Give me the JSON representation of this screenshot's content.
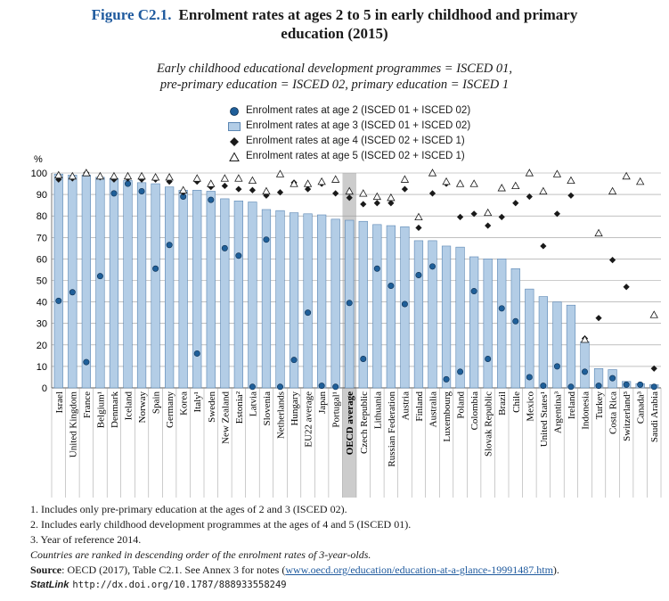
{
  "figure": {
    "number": "Figure C2.1.",
    "title_line1": "Enrolment rates at ages 2 to 5 in early childhood and primary",
    "title_line2": "education (2015)",
    "subtitle_line1": "Early childhood educational development programmes = ISCED 01,",
    "subtitle_line2": "pre-primary education = ISCED 02, primary education = ISCED 1"
  },
  "legend": [
    {
      "symbol": "circle",
      "label": "Enrolment rates at age 2  (ISCED 01 + ISCED 02)"
    },
    {
      "symbol": "bar",
      "label": "Enrolment rates at age 3  (ISCED 01 + ISCED 02)"
    },
    {
      "symbol": "diamond",
      "label": "Enrolment rates at age 4  (ISCED 02 + ISCED 1)"
    },
    {
      "symbol": "triangle",
      "label": "Enrolment rates at age 5  (ISCED 02 + ISCED 1)"
    }
  ],
  "colors": {
    "bar_fill": "#b3cde6",
    "bar_stroke": "#5b86b3",
    "circle_fill": "#1f5f99",
    "diamond_fill": "#1a1a1a",
    "triangle_stroke": "#1a1a1a",
    "highlight": "#cccccc",
    "title_blue": "#1f5a9e"
  },
  "chart_data": {
    "type": "bar",
    "ylabel": "%",
    "ylim": [
      0,
      100
    ],
    "yticks": [
      0,
      10,
      20,
      30,
      40,
      50,
      60,
      70,
      80,
      90,
      100
    ],
    "grid": true,
    "highlighted_category": "OECD average",
    "categories": [
      "Israel",
      "United Kingdom",
      "France",
      "Belgium¹",
      "Denmark",
      "Iceland",
      "Norway",
      "Spain",
      "Germany",
      "Korea",
      "Italy¹",
      "Sweden",
      "New Zealand",
      "Estonia²",
      "Latvia",
      "Slovenia",
      "Netherlands",
      "Hungary",
      "EU22 average",
      "Japan",
      "Portugal¹",
      "OECD average",
      "Czech Republic",
      "Lithuania",
      "Russian Federation",
      "Austria",
      "Finland",
      "Australia",
      "Luxembourg",
      "Poland",
      "Colombia",
      "Slovak Republic",
      "Brazil",
      "Chile",
      "Mexico",
      "United States¹",
      "Argentina³",
      "Ireland",
      "Indonesia",
      "Turkey",
      "Costa Rica",
      "Switzerland³",
      "Canada³",
      "Saudi Arabia"
    ],
    "series": [
      {
        "name": "Enrolment rates at age 2  (ISCED 01 + ISCED 02)",
        "marker": "circle",
        "values": [
          40.5,
          44.5,
          12,
          52,
          90.5,
          95,
          91.5,
          55.5,
          66.5,
          89,
          16,
          87.5,
          65,
          61.5,
          0.5,
          69,
          0.5,
          13,
          35,
          1,
          0.5,
          39.5,
          13.5,
          55.5,
          47.5,
          39,
          52.5,
          56.5,
          4,
          7.5,
          45,
          13.5,
          37,
          31,
          5,
          1,
          10,
          0.5,
          7.5,
          1,
          4.5,
          1.5,
          1.5,
          0.5
        ]
      },
      {
        "name": "Enrolment rates at age 3  (ISCED 01 + ISCED 02)",
        "marker": "bar",
        "values": [
          99.5,
          99,
          99,
          98,
          97.5,
          96.5,
          95.5,
          95,
          93.5,
          92,
          92,
          91.5,
          88,
          87,
          86.5,
          83,
          82.5,
          81.5,
          81,
          80.5,
          78.5,
          78,
          77.5,
          76,
          75.5,
          75,
          68.5,
          68.5,
          66,
          65.5,
          61,
          60,
          60,
          55.5,
          46,
          42.5,
          40,
          38.5,
          21.5,
          9,
          8.5,
          3,
          2,
          1.5
        ]
      },
      {
        "name": "Enrolment rates at age 4  (ISCED 02 + ISCED 1)",
        "marker": "diamond",
        "values": [
          97,
          97.5,
          100,
          98,
          97,
          97.5,
          97,
          97,
          96,
          91,
          96,
          93.5,
          94,
          92.5,
          92,
          89.5,
          91,
          95.5,
          92.5,
          95,
          90.5,
          88.5,
          85.5,
          86,
          86,
          92.5,
          74.5,
          90.5,
          95,
          79.5,
          81,
          75.5,
          79.5,
          86,
          89,
          66,
          81,
          89.5,
          23,
          32.5,
          59.5,
          47,
          null,
          9
        ]
      },
      {
        "name": "Enrolment rates at age 5  (ISCED 02 + ISCED 1)",
        "marker": "triangle",
        "values": [
          99,
          98.5,
          100,
          98.5,
          98.5,
          98.5,
          98.5,
          98,
          98,
          92,
          97.5,
          95,
          97.5,
          97.5,
          96.5,
          91.5,
          99.5,
          95,
          95,
          96,
          97,
          91.5,
          90.5,
          89,
          88.5,
          97,
          79.5,
          100,
          96,
          95,
          95,
          81.5,
          93,
          94,
          100,
          91.5,
          99.5,
          96.5,
          22.5,
          72,
          91.5,
          98.5,
          96,
          34
        ]
      }
    ]
  },
  "notes": {
    "n1": "1. Includes only pre-primary education at the ages of 2 and 3 (ISCED 02).",
    "n2": "2. Includes early childhood development programmes at the ages of 4 and 5 (ISCED 01).",
    "n3": "3. Year of reference 2014.",
    "ranking": "Countries are ranked in descending order of the enrolment rates of 3-year-olds.",
    "source_label": "Source",
    "source_text": ": OECD (2017), Table C2.1. See Annex 3 for notes (",
    "source_link": "www.oecd.org/education/education-at-a-glance-19991487.htm",
    "source_end": ").",
    "statlink_brand": "StatLink",
    "statlink_url": "http://dx.doi.org/10.1787/888933558249"
  }
}
